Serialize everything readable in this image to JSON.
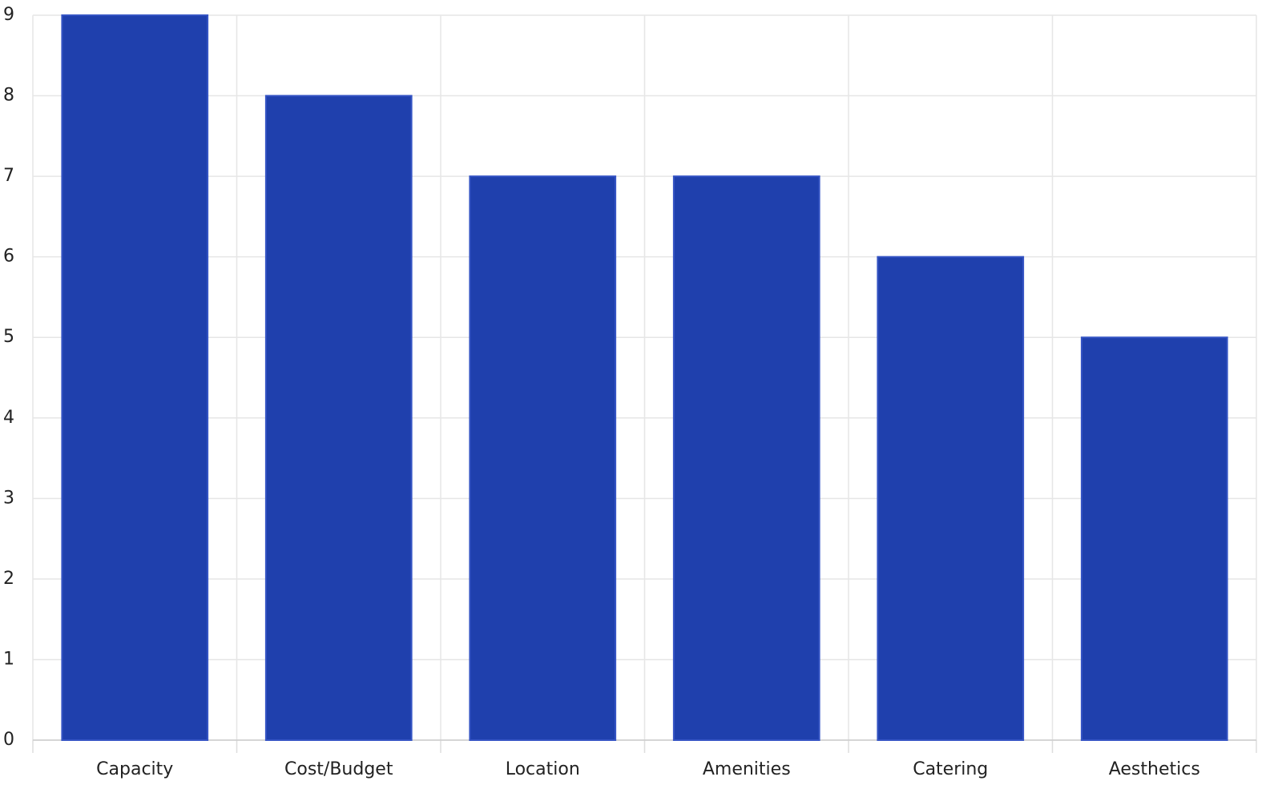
{
  "chart_data": {
    "type": "bar",
    "categories": [
      "Capacity",
      "Cost/Budget",
      "Location",
      "Amenities",
      "Catering",
      "Aesthetics"
    ],
    "values": [
      9,
      8,
      7,
      7,
      6,
      5
    ],
    "color": "#1f40ad",
    "ylim": [
      0,
      9
    ],
    "yticks": [
      0,
      1,
      2,
      3,
      4,
      5,
      6,
      7,
      8,
      9
    ],
    "grid": true
  }
}
